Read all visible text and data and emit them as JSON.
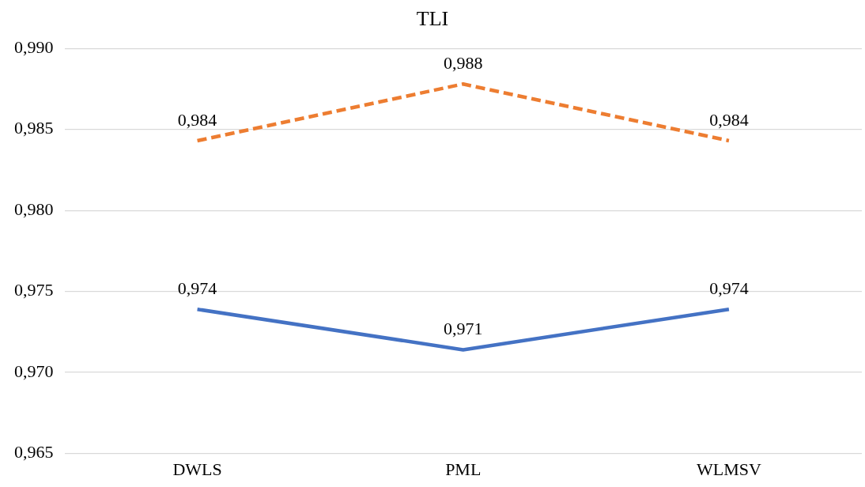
{
  "chart_data": {
    "type": "line",
    "title": "TLI",
    "categories": [
      "DWLS",
      "PML",
      "WLMSV"
    ],
    "series": [
      {
        "color": "#4472c4",
        "values": [
          0.9739,
          0.9714,
          0.9739
        ],
        "value_labels": [
          "0,974",
          "0,971",
          "0,974"
        ],
        "line_style": "solid"
      },
      {
        "color": "#ed7d31",
        "values": [
          0.9843,
          0.9878,
          0.9843
        ],
        "value_labels": [
          "0,984",
          "0,988",
          "0,984"
        ],
        "line_style": "dashed"
      }
    ],
    "ylim": [
      0.965,
      0.99
    ],
    "yticks": [
      {
        "value": 0.965,
        "label": "0,965"
      },
      {
        "value": 0.97,
        "label": "0,970"
      },
      {
        "value": 0.975,
        "label": "0,975"
      },
      {
        "value": 0.98,
        "label": "0,980"
      },
      {
        "value": 0.985,
        "label": "0,985"
      },
      {
        "value": 0.99,
        "label": "0,990"
      }
    ],
    "grid": "y",
    "legend": false,
    "marker": "none"
  }
}
